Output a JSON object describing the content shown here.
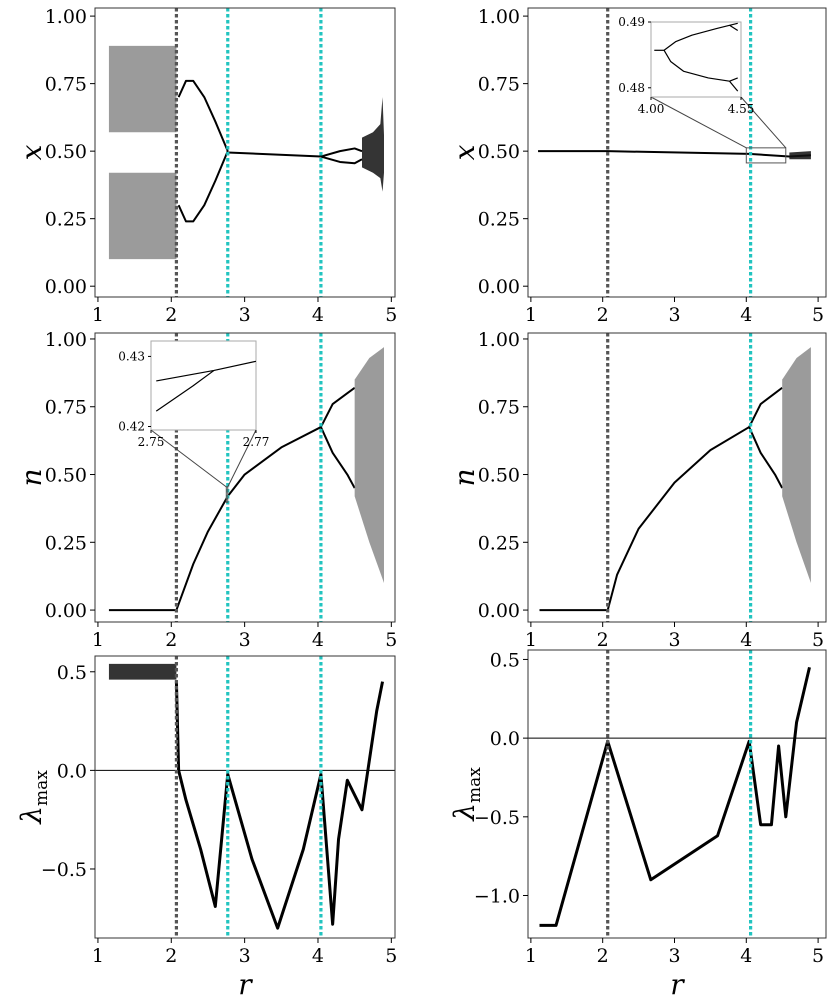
{
  "chart_data": [
    {
      "type": "line",
      "ylabel": "x",
      "xlim": [
        0.96,
        5.05
      ],
      "ylim": [
        -0.04,
        1.03
      ],
      "xticks": [
        1,
        2,
        3,
        4,
        5
      ],
      "yticks": [
        {
          "value": 0,
          "label": "0.00"
        },
        {
          "value": 0.25,
          "label": "0.25"
        },
        {
          "value": 0.5,
          "label": "0.50"
        },
        {
          "value": 0.75,
          "label": "0.75"
        },
        {
          "value": 1,
          "label": "1.00"
        }
      ],
      "vlines": [
        {
          "x": 2.07,
          "color": "#555555"
        },
        {
          "x": 2.77,
          "color": "#22c4c0"
        },
        {
          "x": 4.04,
          "color": "#22c4c0"
        }
      ],
      "series": [
        {
          "type": "band",
          "color": "#8a8a8a",
          "x": [
            1.15,
            2.07
          ],
          "low": [
            0.57,
            0.57
          ],
          "high": [
            0.89,
            0.89
          ]
        },
        {
          "type": "band",
          "color": "#8a8a8a",
          "x": [
            1.15,
            2.07
          ],
          "low": [
            0.1,
            0.1
          ],
          "high": [
            0.42,
            0.42
          ]
        },
        {
          "type": "line",
          "color": "#000000",
          "x": [
            2.1,
            2.2,
            2.3,
            2.45,
            2.6,
            2.77
          ],
          "values": [
            0.7,
            0.76,
            0.76,
            0.7,
            0.61,
            0.5
          ]
        },
        {
          "type": "line",
          "color": "#000000",
          "x": [
            2.1,
            2.2,
            2.3,
            2.45,
            2.6,
            2.77
          ],
          "values": [
            0.3,
            0.24,
            0.24,
            0.3,
            0.39,
            0.5
          ]
        },
        {
          "type": "line",
          "color": "#000000",
          "x": [
            2.77,
            4.04
          ],
          "values": [
            0.495,
            0.48
          ]
        },
        {
          "type": "line",
          "color": "#000000",
          "x": [
            4.04,
            4.3,
            4.5,
            4.6
          ],
          "values": [
            0.48,
            0.5,
            0.51,
            0.5
          ]
        },
        {
          "type": "line",
          "color": "#000000",
          "x": [
            4.04,
            4.3,
            4.5,
            4.6
          ],
          "values": [
            0.48,
            0.46,
            0.455,
            0.47
          ]
        },
        {
          "type": "band",
          "color": "#111111",
          "x": [
            4.6,
            4.75,
            4.85,
            4.88,
            4.9
          ],
          "low": [
            0.44,
            0.42,
            0.4,
            0.35,
            0.42
          ],
          "high": [
            0.55,
            0.57,
            0.6,
            0.7,
            0.56
          ]
        }
      ]
    },
    {
      "type": "line",
      "ylabel": "x",
      "xlim": [
        0.96,
        5.11
      ],
      "ylim": [
        -0.04,
        1.03
      ],
      "xticks": [
        1,
        2,
        3,
        4,
        5
      ],
      "yticks": [
        {
          "value": 0,
          "label": "0.00"
        },
        {
          "value": 0.25,
          "label": "0.25"
        },
        {
          "value": 0.5,
          "label": "0.50"
        },
        {
          "value": 0.75,
          "label": "0.75"
        },
        {
          "value": 1,
          "label": "1.00"
        }
      ],
      "vlines": [
        {
          "x": 2.07,
          "color": "#555555"
        },
        {
          "x": 4.06,
          "color": "#22c4c0"
        }
      ],
      "series": [
        {
          "type": "line",
          "color": "#000000",
          "x": [
            1.1,
            2.07,
            4.04,
            4.6,
            4.9
          ],
          "values": [
            0.5,
            0.5,
            0.49,
            0.48,
            0.485
          ]
        },
        {
          "type": "band",
          "color": "#111111",
          "x": [
            4.6,
            4.9
          ],
          "low": [
            0.47,
            0.47
          ],
          "high": [
            0.495,
            0.5
          ]
        }
      ],
      "inset": {
        "xlim": [
          4.0,
          4.55
        ],
        "ylim": [
          0.4786,
          0.49
        ],
        "xticks": [
          {
            "value": 4.0,
            "label": "4.00"
          },
          4.55
        ],
        "yticks": [
          0.49,
          0.48
        ],
        "series": [
          {
            "type": "line",
            "color": "#000000",
            "x": [
              4.02,
              4.08
            ],
            "values": [
              0.4857,
              0.4857
            ]
          },
          {
            "type": "line",
            "color": "#000000",
            "x": [
              4.08,
              4.15,
              4.25,
              4.4,
              4.48
            ],
            "values": [
              0.4857,
              0.487,
              0.488,
              0.489,
              0.4895
            ]
          },
          {
            "type": "line",
            "color": "#000000",
            "x": [
              4.08,
              4.12,
              4.2,
              4.35,
              4.48
            ],
            "values": [
              0.4857,
              0.484,
              0.4825,
              0.4815,
              0.481
            ]
          },
          {
            "type": "line",
            "color": "#000000",
            "x": [
              4.48,
              4.53
            ],
            "values": [
              0.4895,
              0.4887
            ]
          },
          {
            "type": "line",
            "color": "#000000",
            "x": [
              4.48,
              4.53
            ],
            "values": [
              0.4895,
              0.4898
            ]
          },
          {
            "type": "line",
            "color": "#000000",
            "x": [
              4.48,
              4.53
            ],
            "values": [
              0.481,
              0.4795
            ]
          },
          {
            "type": "line",
            "color": "#000000",
            "x": [
              4.48,
              4.53
            ],
            "values": [
              0.481,
              0.4815
            ]
          }
        ]
      }
    },
    {
      "type": "line",
      "ylabel": "n",
      "xlim": [
        0.96,
        5.05
      ],
      "ylim": [
        -0.044,
        1.022
      ],
      "xticks": [
        1,
        2,
        3,
        4,
        5
      ],
      "yticks": [
        {
          "value": 0,
          "label": "0.00"
        },
        {
          "value": 0.25,
          "label": "0.25"
        },
        {
          "value": 0.5,
          "label": "0.50"
        },
        {
          "value": 0.75,
          "label": "0.75"
        },
        {
          "value": 1,
          "label": "1.00"
        }
      ],
      "vlines": [
        {
          "x": 2.07,
          "color": "#555555"
        },
        {
          "x": 2.77,
          "color": "#22c4c0"
        },
        {
          "x": 4.04,
          "color": "#22c4c0"
        }
      ],
      "series": [
        {
          "type": "line",
          "color": "#000000",
          "x": [
            1.15,
            2.07,
            2.3,
            2.5,
            2.77,
            3.0,
            3.5,
            4.04
          ],
          "values": [
            0,
            0,
            0.17,
            0.29,
            0.42,
            0.5,
            0.6,
            0.675
          ]
        },
        {
          "type": "line",
          "color": "#000000",
          "x": [
            4.04,
            4.2,
            4.4,
            4.5
          ],
          "values": [
            0.675,
            0.76,
            0.8,
            0.82
          ]
        },
        {
          "type": "line",
          "color": "#000000",
          "x": [
            4.04,
            4.2,
            4.4,
            4.5
          ],
          "values": [
            0.675,
            0.58,
            0.5,
            0.45
          ]
        },
        {
          "type": "band",
          "color": "#8a8a8a",
          "x": [
            4.5,
            4.7,
            4.9
          ],
          "low": [
            0.42,
            0.25,
            0.1
          ],
          "high": [
            0.85,
            0.93,
            0.97
          ]
        }
      ],
      "inset": {
        "xlim": [
          2.75,
          2.77
        ],
        "ylim": [
          0.4195,
          0.4322
        ],
        "xticks": [
          2.75,
          2.77
        ],
        "yticks": [
          0.43,
          0.42
        ],
        "series": [
          {
            "type": "line",
            "color": "#000000",
            "x": [
              2.751,
              2.762,
              2.77
            ],
            "values": [
              0.4265,
              0.428,
              0.4293
            ]
          },
          {
            "type": "line",
            "color": "#000000",
            "x": [
              2.751,
              2.758,
              2.762
            ],
            "values": [
              0.4222,
              0.4258,
              0.428
            ]
          }
        ]
      }
    },
    {
      "type": "line",
      "ylabel": "n",
      "xlim": [
        0.96,
        5.11
      ],
      "ylim": [
        -0.044,
        1.022
      ],
      "xticks": [
        1,
        2,
        3,
        4,
        5
      ],
      "yticks": [
        {
          "value": 0,
          "label": "0.00"
        },
        {
          "value": 0.25,
          "label": "0.25"
        },
        {
          "value": 0.5,
          "label": "0.50"
        },
        {
          "value": 0.75,
          "label": "0.75"
        },
        {
          "value": 1,
          "label": "1.00"
        }
      ],
      "vlines": [
        {
          "x": 2.07,
          "color": "#555555"
        },
        {
          "x": 4.06,
          "color": "#22c4c0"
        }
      ],
      "series": [
        {
          "type": "line",
          "color": "#000000",
          "x": [
            1.12,
            2.07,
            2.2,
            2.5,
            3.0,
            3.5,
            4.04
          ],
          "values": [
            0,
            0,
            0.13,
            0.3,
            0.47,
            0.59,
            0.675
          ]
        },
        {
          "type": "line",
          "color": "#000000",
          "x": [
            4.04,
            4.2,
            4.4,
            4.5
          ],
          "values": [
            0.675,
            0.76,
            0.8,
            0.82
          ]
        },
        {
          "type": "line",
          "color": "#000000",
          "x": [
            4.04,
            4.2,
            4.4,
            4.5
          ],
          "values": [
            0.675,
            0.58,
            0.5,
            0.45
          ]
        },
        {
          "type": "band",
          "color": "#8a8a8a",
          "x": [
            4.5,
            4.7,
            4.9
          ],
          "low": [
            0.42,
            0.25,
            0.1
          ],
          "high": [
            0.85,
            0.93,
            0.97
          ]
        }
      ]
    },
    {
      "type": "line",
      "ylabel": {
        "text": "λ",
        "sub": "max"
      },
      "xlabel": "r",
      "xlim": [
        0.96,
        5.05
      ],
      "ylim": [
        -0.85,
        0.58
      ],
      "xticks": [
        1,
        2,
        3,
        4,
        5
      ],
      "yticks": [
        {
          "value": -0.5,
          "label": "−0.5"
        },
        {
          "value": 0,
          "label": "0.0"
        },
        0.5
      ],
      "hline": 0,
      "vlines": [
        {
          "x": 2.07,
          "color": "#555555"
        },
        {
          "x": 2.77,
          "color": "#22c4c0"
        },
        {
          "x": 4.04,
          "color": "#22c4c0"
        }
      ],
      "series": [
        {
          "type": "band",
          "color": "#111111",
          "x": [
            1.15,
            2.07
          ],
          "low": [
            0.46,
            0.46
          ],
          "high": [
            0.54,
            0.54
          ]
        },
        {
          "type": "line",
          "color": "#000000",
          "x": [
            2.07,
            2.1,
            2.2,
            2.4,
            2.6,
            2.77,
            3.1,
            3.45,
            3.8,
            4.04,
            4.2,
            4.28,
            4.4,
            4.6,
            4.8,
            4.88
          ],
          "values": [
            0.45,
            0.0,
            -0.15,
            -0.4,
            -0.69,
            -0.02,
            -0.45,
            -0.8,
            -0.4,
            -0.02,
            -0.78,
            -0.35,
            -0.05,
            -0.2,
            0.3,
            0.45
          ]
        }
      ]
    },
    {
      "type": "line",
      "ylabel": {
        "text": "λ",
        "sub": "max"
      },
      "xlabel": "r",
      "xlim": [
        0.96,
        5.11
      ],
      "ylim": [
        -1.27,
        0.56
      ],
      "xticks": [
        1,
        2,
        3,
        4,
        5
      ],
      "yticks": [
        {
          "value": -1,
          "label": "−1.0"
        },
        {
          "value": -0.5,
          "label": "−0.5"
        },
        {
          "value": 0,
          "label": "0.0"
        },
        0.5
      ],
      "hline": 0,
      "vlines": [
        {
          "x": 2.07,
          "color": "#555555"
        },
        {
          "x": 4.06,
          "color": "#22c4c0"
        }
      ],
      "series": [
        {
          "type": "line",
          "color": "#000000",
          "x": [
            1.12,
            1.35,
            2.07,
            2.67,
            3.6,
            4.04,
            4.2,
            4.35,
            4.45,
            4.55,
            4.7,
            4.88
          ],
          "values": [
            -1.19,
            -1.19,
            -0.02,
            -0.9,
            -0.62,
            -0.02,
            -0.55,
            -0.55,
            -0.05,
            -0.5,
            0.1,
            0.45
          ]
        }
      ]
    }
  ]
}
